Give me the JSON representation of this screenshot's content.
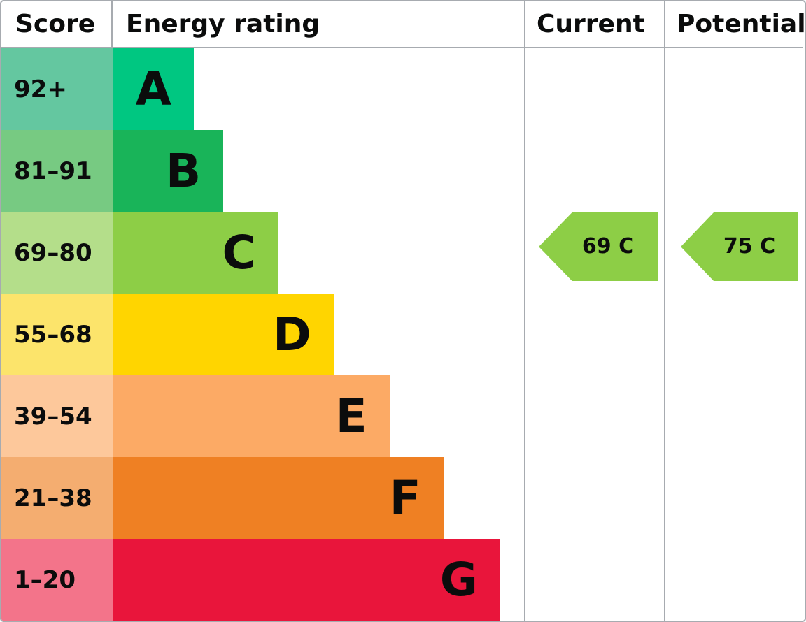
{
  "header": {
    "score": "Score",
    "energy_rating": "Energy rating",
    "current": "Current",
    "potential": "Potential"
  },
  "chart_data": {
    "type": "bar",
    "title": "Energy efficiency rating chart (EPC)",
    "orientation": "horizontal",
    "columns": [
      "Score",
      "Energy rating",
      "Current",
      "Potential"
    ],
    "bands": [
      {
        "letter": "A",
        "score": "92+",
        "score_min": 92,
        "score_max": 100,
        "bar_color": "#00c781",
        "score_color": "#64c7a0",
        "width_pct": 19.7
      },
      {
        "letter": "B",
        "score": "81–91",
        "score_min": 81,
        "score_max": 91,
        "bar_color": "#19b459",
        "score_color": "#77ca82",
        "width_pct": 26.9
      },
      {
        "letter": "C",
        "score": "69–80",
        "score_min": 69,
        "score_max": 80,
        "bar_color": "#8dce46",
        "score_color": "#b4de8a",
        "width_pct": 40.3
      },
      {
        "letter": "D",
        "score": "55–68",
        "score_min": 55,
        "score_max": 68,
        "bar_color": "#ffd500",
        "score_color": "#fce46b",
        "width_pct": 53.7
      },
      {
        "letter": "E",
        "score": "39–54",
        "score_min": 39,
        "score_max": 54,
        "bar_color": "#fcaa65",
        "score_color": "#fdc89b",
        "width_pct": 67.3
      },
      {
        "letter": "F",
        "score": "21–38",
        "score_min": 21,
        "score_max": 38,
        "bar_color": "#ef8023",
        "score_color": "#f4ad70",
        "width_pct": 80.4
      },
      {
        "letter": "G",
        "score": "1–20",
        "score_min": 1,
        "score_max": 20,
        "bar_color": "#e9153b",
        "score_color": "#f3748a",
        "width_pct": 94.2
      }
    ],
    "current": {
      "value": 69,
      "band": "C",
      "label": "69 C",
      "arrow_color": "#8dce46",
      "band_index": 2
    },
    "potential": {
      "value": 75,
      "band": "C",
      "label": "75 C",
      "arrow_color": "#8dce46",
      "band_index": 2
    }
  },
  "colors": {
    "border": "#a7abb0",
    "text": "#0b0c0c",
    "background": "#ffffff"
  }
}
